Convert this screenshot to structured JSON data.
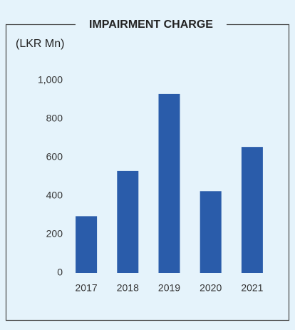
{
  "chart_data": {
    "type": "bar",
    "title": "IMPAIRMENT CHARGE",
    "y_axis_label": "(LKR Mn)",
    "categories": [
      "2017",
      "2018",
      "2019",
      "2020",
      "2021"
    ],
    "values": [
      295,
      530,
      930,
      425,
      655
    ],
    "color": "#2a5caa",
    "ylim": [
      0,
      1000
    ],
    "yticks": [
      0,
      200,
      400,
      600,
      800,
      {
        "value": 1000,
        "label": "1,000"
      }
    ],
    "grid": false
  }
}
